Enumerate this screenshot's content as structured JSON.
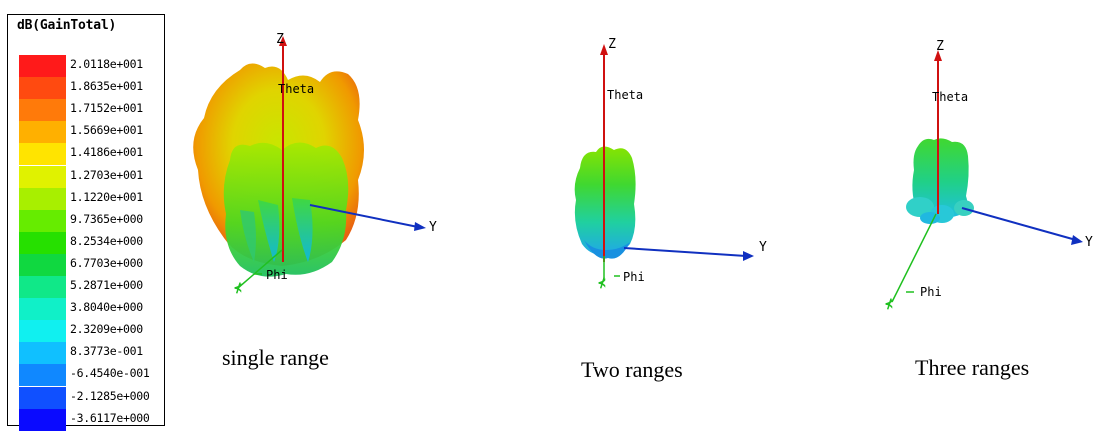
{
  "legend": {
    "title": "dB(GainTotal)",
    "entries": [
      {
        "value": "2.0118e+001",
        "color": "#ff1a1a"
      },
      {
        "value": "1.8635e+001",
        "color": "#ff4a10"
      },
      {
        "value": "1.7152e+001",
        "color": "#ff7a0a"
      },
      {
        "value": "1.5669e+001",
        "color": "#ffb000"
      },
      {
        "value": "1.4186e+001",
        "color": "#ffe400"
      },
      {
        "value": "1.2703e+001",
        "color": "#e0f200"
      },
      {
        "value": "1.1220e+001",
        "color": "#a8ef00"
      },
      {
        "value": "9.7365e+000",
        "color": "#66ec00"
      },
      {
        "value": "8.2534e+000",
        "color": "#26e000"
      },
      {
        "value": "6.7703e+000",
        "color": "#10d840"
      },
      {
        "value": "5.2871e+000",
        "color": "#10e888"
      },
      {
        "value": "3.8040e+000",
        "color": "#10f0c8"
      },
      {
        "value": "2.3209e+000",
        "color": "#10f0f0"
      },
      {
        "value": "8.3773e-001",
        "color": "#10c0ff"
      },
      {
        "value": "-6.4540e-001",
        "color": "#1088ff"
      },
      {
        "value": "-2.1285e+000",
        "color": "#1050ff"
      },
      {
        "value": "-3.6117e+000",
        "color": "#0a0aff"
      }
    ]
  },
  "axes": {
    "z": "Z",
    "y": "Y",
    "theta": "Theta",
    "phi": "Phi"
  },
  "plots": [
    {
      "caption": "single range"
    },
    {
      "caption": "Two ranges"
    },
    {
      "caption": "Three ranges"
    }
  ]
}
